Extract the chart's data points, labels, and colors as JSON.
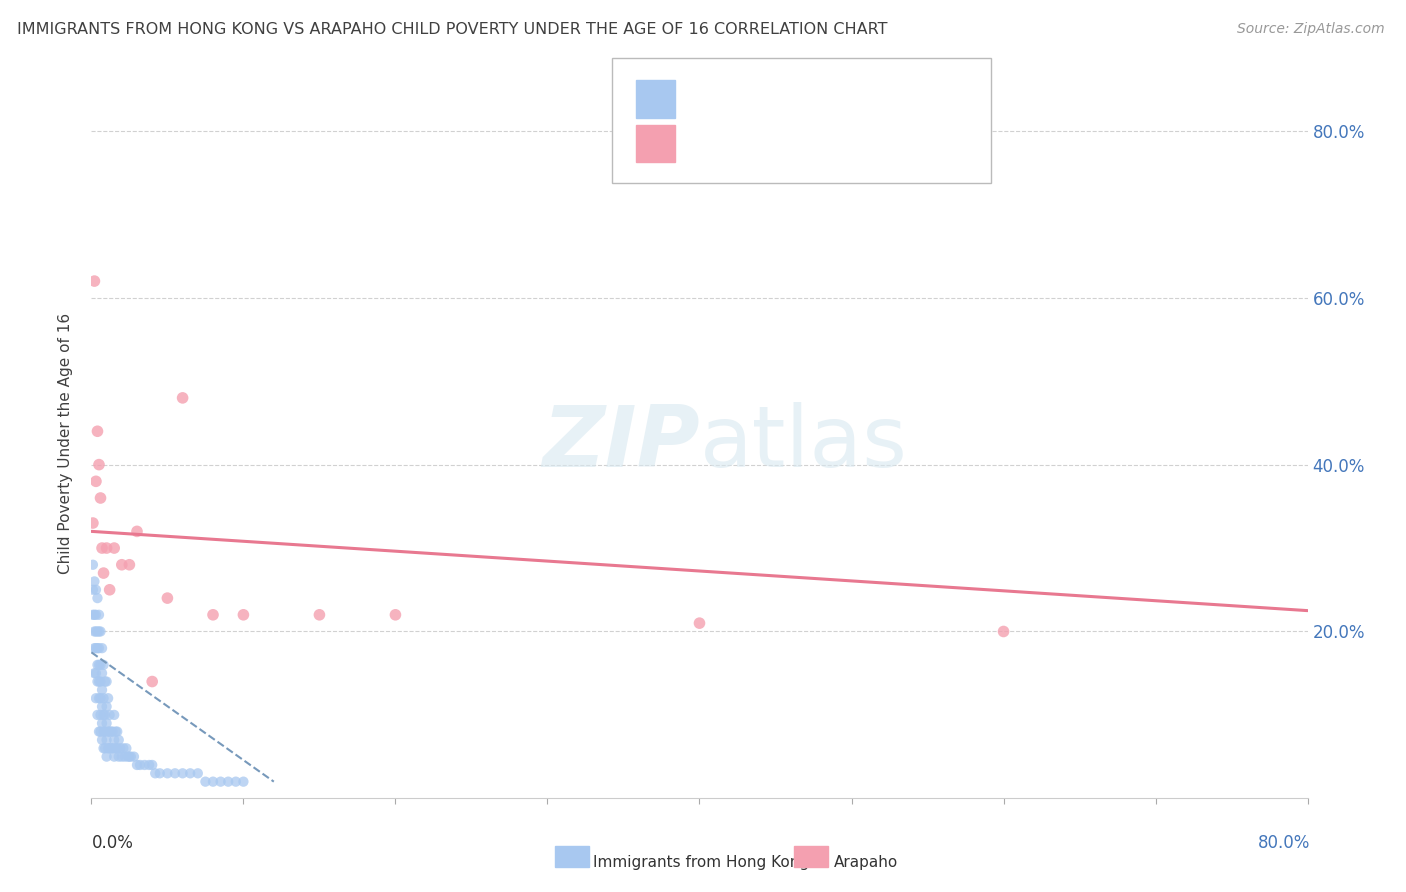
{
  "title": "IMMIGRANTS FROM HONG KONG VS ARAPAHO CHILD POVERTY UNDER THE AGE OF 16 CORRELATION CHART",
  "source": "Source: ZipAtlas.com",
  "ylabel": "Child Poverty Under the Age of 16",
  "right_yticks": [
    "80.0%",
    "60.0%",
    "40.0%",
    "20.0%"
  ],
  "right_ytick_vals": [
    0.8,
    0.6,
    0.4,
    0.2
  ],
  "hk_color": "#a8c8f0",
  "arapaho_color": "#f4a0b0",
  "hk_line_color": "#7799bb",
  "arapaho_line_color": "#e87890",
  "background_color": "#ffffff",
  "grid_color": "#cccccc",
  "title_color": "#404040",
  "xlim": [
    0.0,
    0.8
  ],
  "ylim": [
    0.0,
    0.85
  ],
  "hk_scatter_x": [
    0.001,
    0.001,
    0.001,
    0.002,
    0.002,
    0.002,
    0.002,
    0.002,
    0.003,
    0.003,
    0.003,
    0.003,
    0.003,
    0.003,
    0.004,
    0.004,
    0.004,
    0.004,
    0.004,
    0.004,
    0.005,
    0.005,
    0.005,
    0.005,
    0.005,
    0.005,
    0.005,
    0.006,
    0.006,
    0.006,
    0.006,
    0.006,
    0.006,
    0.007,
    0.007,
    0.007,
    0.007,
    0.007,
    0.007,
    0.008,
    0.008,
    0.008,
    0.008,
    0.008,
    0.009,
    0.009,
    0.009,
    0.009,
    0.01,
    0.01,
    0.01,
    0.01,
    0.01,
    0.011,
    0.011,
    0.011,
    0.012,
    0.012,
    0.012,
    0.013,
    0.013,
    0.014,
    0.014,
    0.015,
    0.015,
    0.015,
    0.016,
    0.016,
    0.017,
    0.017,
    0.018,
    0.018,
    0.019,
    0.02,
    0.021,
    0.022,
    0.023,
    0.024,
    0.025,
    0.026,
    0.028,
    0.03,
    0.032,
    0.035,
    0.038,
    0.04,
    0.042,
    0.045,
    0.05,
    0.055,
    0.06,
    0.065,
    0.07,
    0.075,
    0.08,
    0.085,
    0.09,
    0.095,
    0.1
  ],
  "hk_scatter_y": [
    0.22,
    0.25,
    0.28,
    0.15,
    0.18,
    0.2,
    0.22,
    0.26,
    0.12,
    0.15,
    0.18,
    0.2,
    0.22,
    0.25,
    0.1,
    0.14,
    0.16,
    0.18,
    0.2,
    0.24,
    0.08,
    0.12,
    0.14,
    0.16,
    0.18,
    0.2,
    0.22,
    0.08,
    0.1,
    0.12,
    0.14,
    0.16,
    0.2,
    0.07,
    0.09,
    0.11,
    0.13,
    0.15,
    0.18,
    0.06,
    0.08,
    0.1,
    0.12,
    0.16,
    0.06,
    0.08,
    0.1,
    0.14,
    0.05,
    0.07,
    0.09,
    0.11,
    0.14,
    0.06,
    0.08,
    0.12,
    0.06,
    0.08,
    0.1,
    0.06,
    0.08,
    0.06,
    0.08,
    0.05,
    0.07,
    0.1,
    0.06,
    0.08,
    0.06,
    0.08,
    0.05,
    0.07,
    0.06,
    0.05,
    0.06,
    0.05,
    0.06,
    0.05,
    0.05,
    0.05,
    0.05,
    0.04,
    0.04,
    0.04,
    0.04,
    0.04,
    0.03,
    0.03,
    0.03,
    0.03,
    0.03,
    0.03,
    0.03,
    0.02,
    0.02,
    0.02,
    0.02,
    0.02,
    0.02
  ],
  "arapaho_scatter_x": [
    0.001,
    0.002,
    0.003,
    0.004,
    0.005,
    0.006,
    0.007,
    0.008,
    0.01,
    0.012,
    0.015,
    0.02,
    0.025,
    0.03,
    0.04,
    0.05,
    0.06,
    0.08,
    0.1,
    0.15,
    0.2,
    0.4,
    0.6
  ],
  "arapaho_scatter_y": [
    0.33,
    0.62,
    0.38,
    0.44,
    0.4,
    0.36,
    0.3,
    0.27,
    0.3,
    0.25,
    0.3,
    0.28,
    0.28,
    0.32,
    0.14,
    0.24,
    0.48,
    0.22,
    0.22,
    0.22,
    0.22,
    0.21,
    0.2
  ],
  "ara_line_x0": 0.0,
  "ara_line_x1": 0.8,
  "ara_line_y0": 0.32,
  "ara_line_y1": 0.225,
  "hk_line_x0": 0.0,
  "hk_line_x1": 0.12,
  "hk_line_y0": 0.175,
  "hk_line_y1": 0.02
}
